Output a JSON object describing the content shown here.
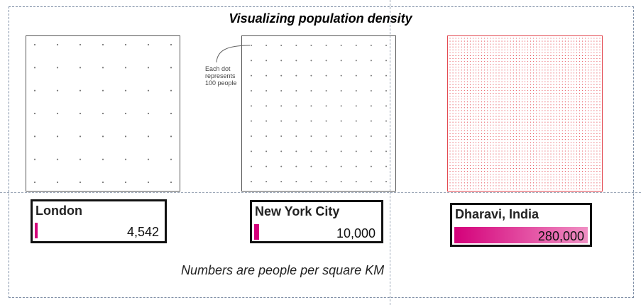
{
  "title": "Visualizing population density",
  "annotation": "Each dot represents 100 people",
  "footnote": "Numbers are people per square KM",
  "max_value": 280000,
  "colors": {
    "accent": "#d4007a",
    "dot_grey": "#777777",
    "dot_red": "#e0202c",
    "red_border": "#e34850"
  },
  "cities": [
    {
      "name": "London",
      "value": 4542,
      "value_label": "4,542",
      "dots_per_side": 7
    },
    {
      "name": "New York City",
      "value": 10000,
      "value_label": "10,000",
      "dots_per_side": 10
    },
    {
      "name": "Dharavi, India",
      "value": 280000,
      "value_label": "280,000",
      "dots_per_side": 53
    }
  ]
}
